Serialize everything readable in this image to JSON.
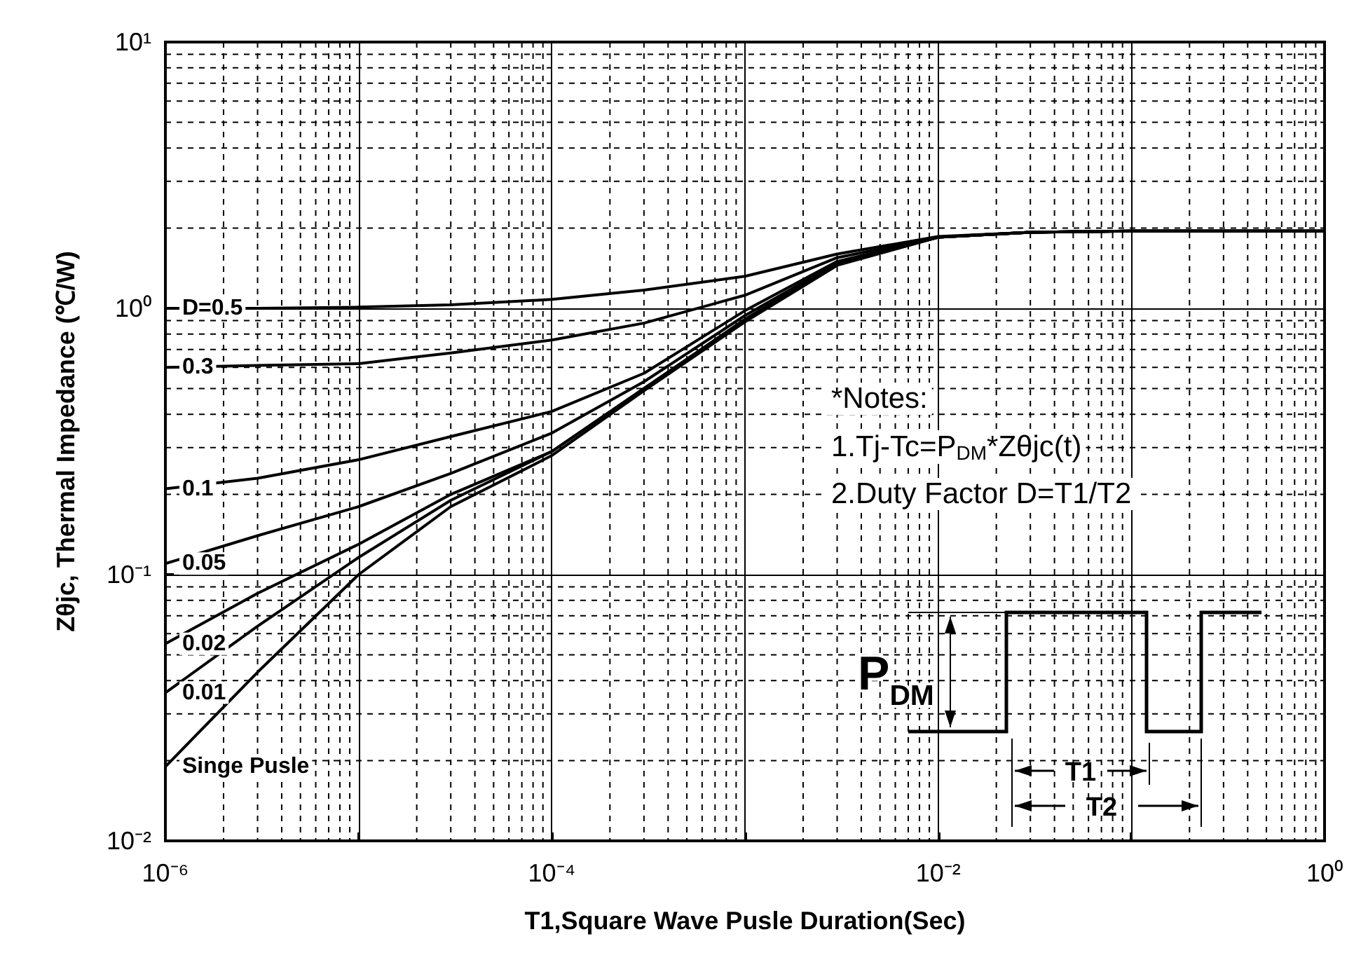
{
  "chart_data": {
    "type": "line",
    "xlabel": "T1,Square Wave Pusle Duration(Sec)",
    "ylabel": "Zθjc, Thermal Impedance (℃/W)",
    "x": [
      1e-06,
      3e-06,
      1e-05,
      3e-05,
      0.0001,
      0.0003,
      0.001,
      0.003,
      0.01,
      0.03,
      0.1,
      1
    ],
    "series": [
      {
        "name": "D=0.5",
        "color": "#000000",
        "values": [
          1.0,
          1.0,
          1.01,
          1.03,
          1.08,
          1.17,
          1.32,
          1.6,
          1.86,
          1.93,
          1.95,
          1.95
        ]
      },
      {
        "name": "0.3",
        "color": "#000000",
        "values": [
          0.6,
          0.61,
          0.62,
          0.68,
          0.76,
          0.88,
          1.12,
          1.55,
          1.85,
          1.93,
          1.95,
          1.95
        ]
      },
      {
        "name": "0.1",
        "color": "#000000",
        "values": [
          0.21,
          0.23,
          0.27,
          0.33,
          0.41,
          0.57,
          0.98,
          1.5,
          1.85,
          1.93,
          1.95,
          1.95
        ]
      },
      {
        "name": "0.05",
        "color": "#000000",
        "values": [
          0.11,
          0.14,
          0.18,
          0.24,
          0.34,
          0.53,
          0.94,
          1.48,
          1.85,
          1.93,
          1.95,
          1.95
        ]
      },
      {
        "name": "0.02",
        "color": "#000000",
        "values": [
          0.055,
          0.085,
          0.13,
          0.2,
          0.29,
          0.5,
          0.91,
          1.47,
          1.85,
          1.93,
          1.95,
          1.95
        ]
      },
      {
        "name": "0.01",
        "color": "#000000",
        "values": [
          0.036,
          0.064,
          0.116,
          0.19,
          0.29,
          0.5,
          0.9,
          1.46,
          1.85,
          1.93,
          1.95,
          1.95
        ]
      },
      {
        "name": "Singe Pusle",
        "color": "#000000",
        "values": [
          0.019,
          0.043,
          0.1,
          0.18,
          0.28,
          0.49,
          0.89,
          1.45,
          1.85,
          1.93,
          1.95,
          1.95
        ]
      }
    ],
    "log": "xy",
    "xlim": [
      1e-06,
      1
    ],
    "ylim": [
      0.01,
      10
    ],
    "xticks": [
      {
        "value": 1e-06,
        "label": "10⁻⁶"
      },
      {
        "value": 1e-05,
        "label": null
      },
      {
        "value": 0.0001,
        "label": "10⁻⁴"
      },
      {
        "value": 0.001,
        "label": null
      },
      {
        "value": 0.01,
        "label": "10⁻²"
      },
      {
        "value": 0.1,
        "label": null
      },
      {
        "value": 1,
        "label": "10⁰"
      }
    ],
    "yticks": [
      {
        "value": 0.01,
        "label": "10⁻²"
      },
      {
        "value": 0.1,
        "label": "10⁻¹"
      },
      {
        "value": 1,
        "label": "10⁰"
      },
      {
        "value": 10,
        "label": "10¹"
      }
    ],
    "grid": true,
    "legend": false,
    "marker": "none",
    "line_style": "solid",
    "annotations": [
      "*Notes:",
      "1.Tj-Tc=P$_{DM}$*Zθjc(t)",
      "2.Duty Factor D=T1/T2",
      "P$_{DM}$",
      "T1",
      "T2"
    ]
  }
}
